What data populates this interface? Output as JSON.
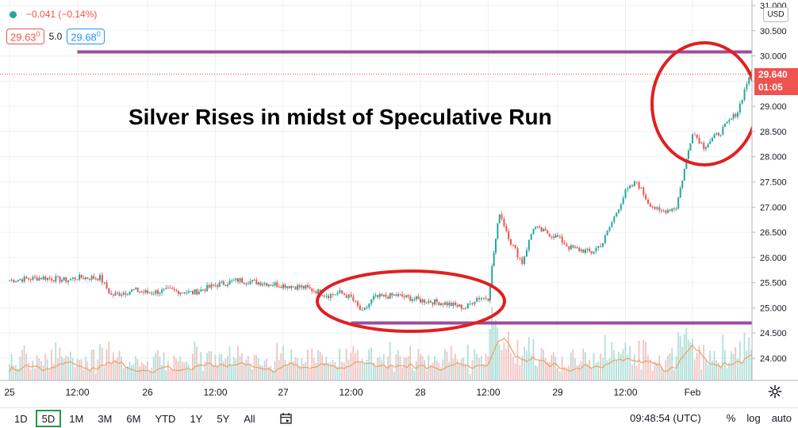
{
  "legend": {
    "change": "−0.041 (−0.14%)",
    "sell_price": "29.63",
    "sell_super": "0",
    "spread": "5.0",
    "buy_price": "29.68",
    "buy_super": "0"
  },
  "axis": {
    "currency": "USD",
    "last_price": "29.640",
    "countdown": "01:05"
  },
  "bottom_bar": {
    "ranges": [
      "1D",
      "5D",
      "1M",
      "3M",
      "6M",
      "YTD",
      "1Y",
      "5Y",
      "All"
    ],
    "active_range": "5D",
    "clock": "09:48:54 (UTC)",
    "percent": "%",
    "log": "log",
    "auto": "auto"
  },
  "colors": {
    "up": "#26a69a",
    "down": "#ef5350",
    "level_line": "#9c4c9e",
    "highlight_circle": "#e02020",
    "volume_ma": "#f0a060"
  },
  "chart_data": {
    "type": "candlestick",
    "title": "Silver Rises in midst of Speculative Run",
    "y_range": [
      23.6,
      31.0
    ],
    "y_ticks": [
      "31.000",
      "30.500",
      "30.000",
      "29.500",
      "29.000",
      "28.500",
      "28.000",
      "27.500",
      "27.000",
      "26.500",
      "26.000",
      "25.500",
      "25.000",
      "24.500",
      "24.000"
    ],
    "x_ticks": [
      "25",
      "12:00",
      "26",
      "12:00",
      "27",
      "12:00",
      "28",
      "12:00",
      "29",
      "12:00",
      "Feb"
    ],
    "close_path": [
      [
        "25 00:00",
        25.55
      ],
      [
        "25 06:00",
        25.6
      ],
      [
        "25 10:00",
        25.55
      ],
      [
        "25 12:00",
        25.6
      ],
      [
        "25 16:00",
        25.6
      ],
      [
        "25 18:00",
        25.25
      ],
      [
        "25 22:00",
        25.35
      ],
      [
        "26 00:00",
        25.3
      ],
      [
        "26 04:00",
        25.35
      ],
      [
        "26 08:00",
        25.3
      ],
      [
        "26 12:00",
        25.45
      ],
      [
        "26 16:00",
        25.55
      ],
      [
        "26 20:00",
        25.5
      ],
      [
        "27 00:00",
        25.45
      ],
      [
        "27 04:00",
        25.4
      ],
      [
        "27 08:00",
        25.25
      ],
      [
        "27 10:00",
        25.3
      ],
      [
        "27 12:00",
        25.2
      ],
      [
        "27 14:00",
        24.9
      ],
      [
        "27 16:00",
        25.2
      ],
      [
        "27 20:00",
        25.25
      ],
      [
        "28 00:00",
        25.15
      ],
      [
        "28 04:00",
        25.1
      ],
      [
        "28 08:00",
        25.0
      ],
      [
        "28 10:00",
        25.2
      ],
      [
        "28 12:00",
        25.2
      ],
      [
        "28 13:00",
        26.1
      ],
      [
        "28 14:00",
        26.9
      ],
      [
        "28 16:00",
        26.3
      ],
      [
        "28 18:00",
        25.9
      ],
      [
        "28 20:00",
        26.6
      ],
      [
        "29 00:00",
        26.4
      ],
      [
        "29 02:00",
        26.2
      ],
      [
        "29 06:00",
        26.1
      ],
      [
        "29 08:00",
        26.3
      ],
      [
        "29 10:00",
        26.8
      ],
      [
        "29 12:00",
        27.3
      ],
      [
        "29 14:00",
        27.5
      ],
      [
        "29 16:00",
        27.1
      ],
      [
        "29 18:00",
        26.9
      ],
      [
        "29 21:00",
        27.0
      ],
      [
        "1 00:00",
        28.5
      ],
      [
        "1 02:00",
        28.2
      ],
      [
        "1 05:00",
        28.5
      ],
      [
        "1 08:00",
        28.9
      ],
      [
        "1 10:00",
        29.6
      ],
      [
        "1 12:00",
        29.7
      ],
      [
        "1 14:00",
        29.64
      ]
    ],
    "horizontal_levels": [
      {
        "price": 30.08,
        "from": "25 12:00",
        "to": "1 14:00"
      },
      {
        "price": 24.7,
        "from": "27 12:00",
        "to": "1 14:00"
      }
    ],
    "last_price": 29.64,
    "volume_panel": true,
    "grid": true
  }
}
